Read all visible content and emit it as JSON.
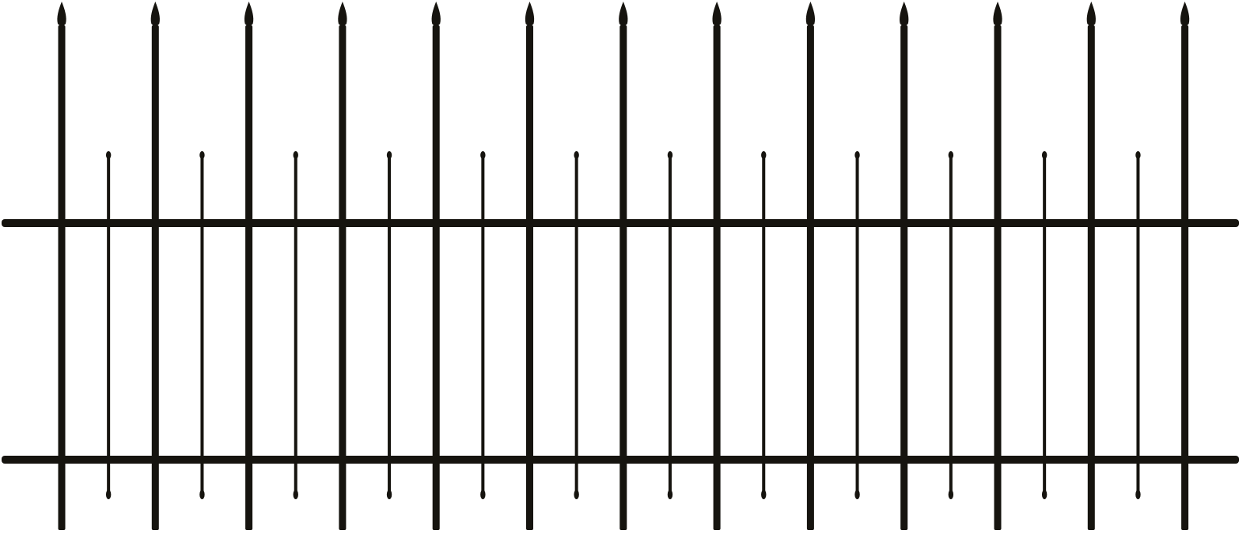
{
  "scene": {
    "subject": "wrought-iron-fence",
    "background_color": "#ffffff",
    "iron_color": "#16140f",
    "tall_picket_count": 13,
    "short_picket_count": 12,
    "rail_count": 2,
    "tall_picket_finial": "spear-point",
    "short_picket_ends": "rounded-knob"
  }
}
